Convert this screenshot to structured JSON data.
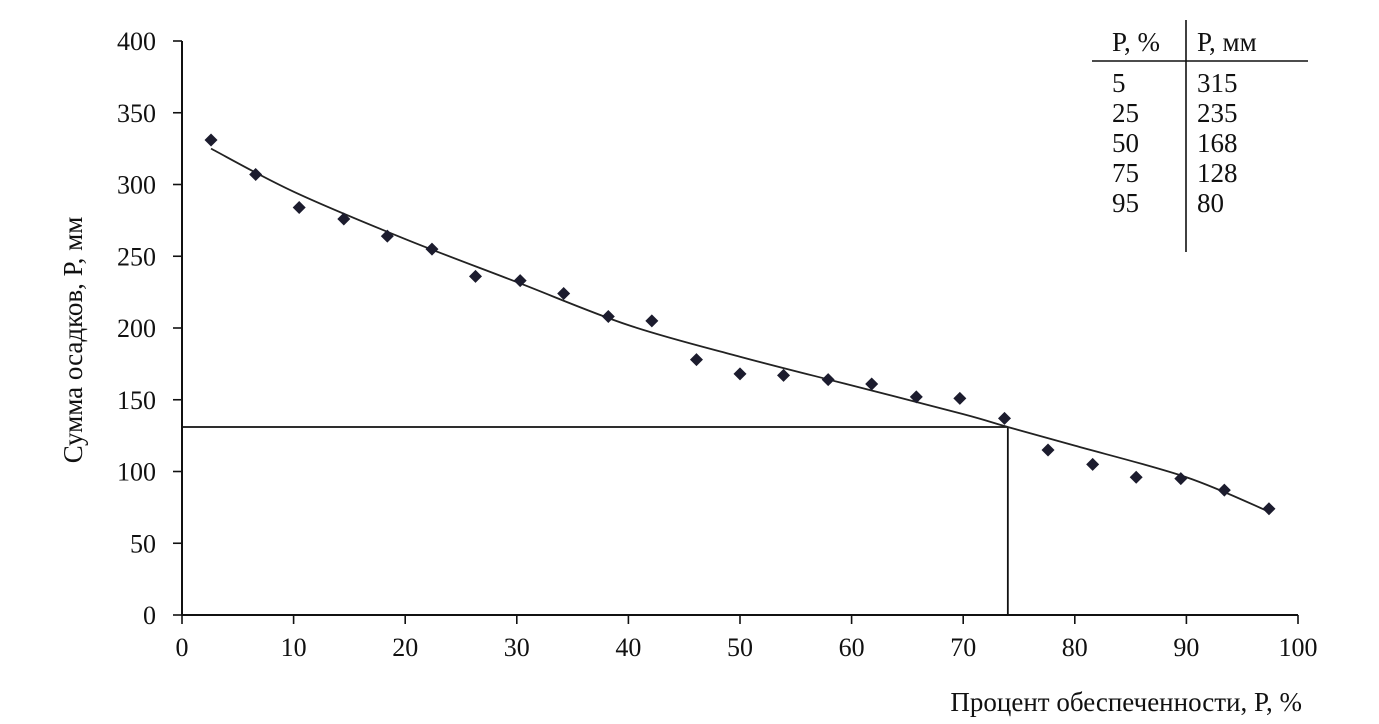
{
  "chart_data": {
    "type": "scatter",
    "xlabel": "Процент обеспеченности, P, %",
    "ylabel": "Сумма осадков, P, мм",
    "xlim": [
      0,
      100
    ],
    "ylim": [
      0,
      400
    ],
    "x_ticks": [
      "0",
      "10",
      "20",
      "30",
      "40",
      "50",
      "60",
      "70",
      "80",
      "90",
      "100"
    ],
    "y_ticks": [
      "0",
      "50",
      "100",
      "150",
      "200",
      "250",
      "300",
      "350",
      "400"
    ],
    "grid": false,
    "series": [
      {
        "points": [
          [
            2.6,
            331
          ],
          [
            6.6,
            307
          ],
          [
            10.5,
            284
          ],
          [
            14.5,
            276
          ],
          [
            18.4,
            264
          ],
          [
            22.4,
            255
          ],
          [
            26.3,
            236
          ],
          [
            30.3,
            233
          ],
          [
            34.2,
            224
          ],
          [
            38.2,
            208
          ],
          [
            42.1,
            205
          ],
          [
            46.1,
            178
          ],
          [
            50.0,
            168
          ],
          [
            53.9,
            167
          ],
          [
            57.9,
            164
          ],
          [
            61.8,
            161
          ],
          [
            65.8,
            152
          ],
          [
            69.7,
            151
          ],
          [
            73.7,
            137
          ],
          [
            77.6,
            115
          ],
          [
            81.6,
            105
          ],
          [
            85.5,
            96
          ],
          [
            89.5,
            95
          ],
          [
            93.4,
            87
          ],
          [
            97.4,
            74
          ]
        ]
      }
    ],
    "trendline": [
      [
        2.6,
        325
      ],
      [
        10,
        295
      ],
      [
        20,
        262
      ],
      [
        30,
        232
      ],
      [
        40,
        202
      ],
      [
        50,
        180
      ],
      [
        60,
        160
      ],
      [
        70,
        140
      ],
      [
        74,
        131
      ],
      [
        80,
        118
      ],
      [
        90,
        96
      ],
      [
        97.4,
        72
      ]
    ],
    "guide": {
      "x": 74,
      "y": 131
    },
    "table": {
      "headers": [
        "P, %",
        "P, мм"
      ],
      "rows": [
        [
          "5",
          "315"
        ],
        [
          "25",
          "235"
        ],
        [
          "50",
          "168"
        ],
        [
          "75",
          "128"
        ],
        [
          "95",
          "80"
        ]
      ]
    }
  }
}
